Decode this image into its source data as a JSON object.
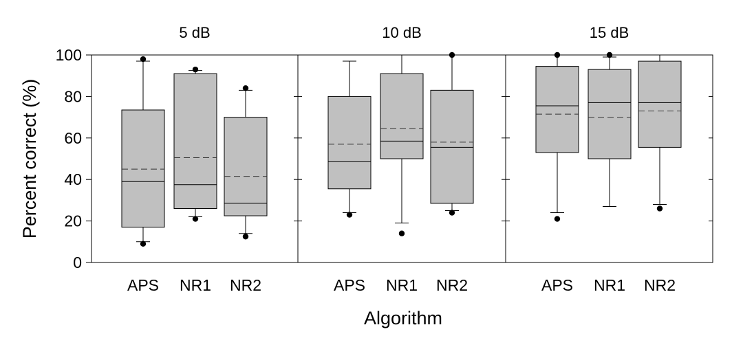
{
  "chart_data": {
    "type": "boxplot",
    "ylabel": "Percent correct (%)",
    "xlabel": "Algorithm",
    "ylim": [
      0,
      100
    ],
    "yticks": [
      0,
      20,
      40,
      60,
      80,
      100
    ],
    "categories": [
      "APS",
      "NR1",
      "NR2"
    ],
    "colors": {
      "box_fill": "#c0c0c0",
      "stroke": "#000000",
      "background": "#ffffff"
    },
    "panels": [
      {
        "title": "5 dB",
        "boxes": [
          {
            "category": "APS",
            "whisker_low": 10,
            "q1": 17,
            "median": 39,
            "mean": 45,
            "q3": 73.5,
            "whisker_high": 97,
            "outliers": [
              9,
              98
            ]
          },
          {
            "category": "NR1",
            "whisker_low": 22,
            "q1": 26,
            "median": 37.5,
            "mean": 50.5,
            "q3": 91,
            "whisker_high": 92.5,
            "outliers": [
              21,
              93
            ]
          },
          {
            "category": "NR2",
            "whisker_low": 14,
            "q1": 22.5,
            "median": 28.5,
            "mean": 41.5,
            "q3": 70,
            "whisker_high": 83,
            "outliers": [
              12.5,
              84
            ]
          }
        ]
      },
      {
        "title": "10 dB",
        "boxes": [
          {
            "category": "APS",
            "whisker_low": 24,
            "q1": 35.5,
            "median": 48.5,
            "mean": 57,
            "q3": 80,
            "whisker_high": 97,
            "outliers": [
              23
            ]
          },
          {
            "category": "NR1",
            "whisker_low": 19,
            "q1": 50,
            "median": 58.5,
            "mean": 64.5,
            "q3": 91,
            "whisker_high": 100,
            "outliers": [
              14
            ]
          },
          {
            "category": "NR2",
            "whisker_low": 25,
            "q1": 28.5,
            "median": 55.5,
            "mean": 58,
            "q3": 83,
            "whisker_high": 100,
            "outliers": [
              24,
              100
            ]
          }
        ]
      },
      {
        "title": "15 dB",
        "boxes": [
          {
            "category": "APS",
            "whisker_low": 24,
            "q1": 53,
            "median": 75.5,
            "mean": 71.5,
            "q3": 94.5,
            "whisker_high": 100,
            "outliers": [
              21,
              100
            ]
          },
          {
            "category": "NR1",
            "whisker_low": 27,
            "q1": 50,
            "median": 77,
            "mean": 70,
            "q3": 93,
            "whisker_high": 99,
            "outliers": [
              100
            ]
          },
          {
            "category": "NR2",
            "whisker_low": 28,
            "q1": 55.5,
            "median": 77,
            "mean": 73,
            "q3": 97,
            "whisker_high": 100,
            "outliers": [
              26
            ]
          }
        ]
      }
    ]
  }
}
